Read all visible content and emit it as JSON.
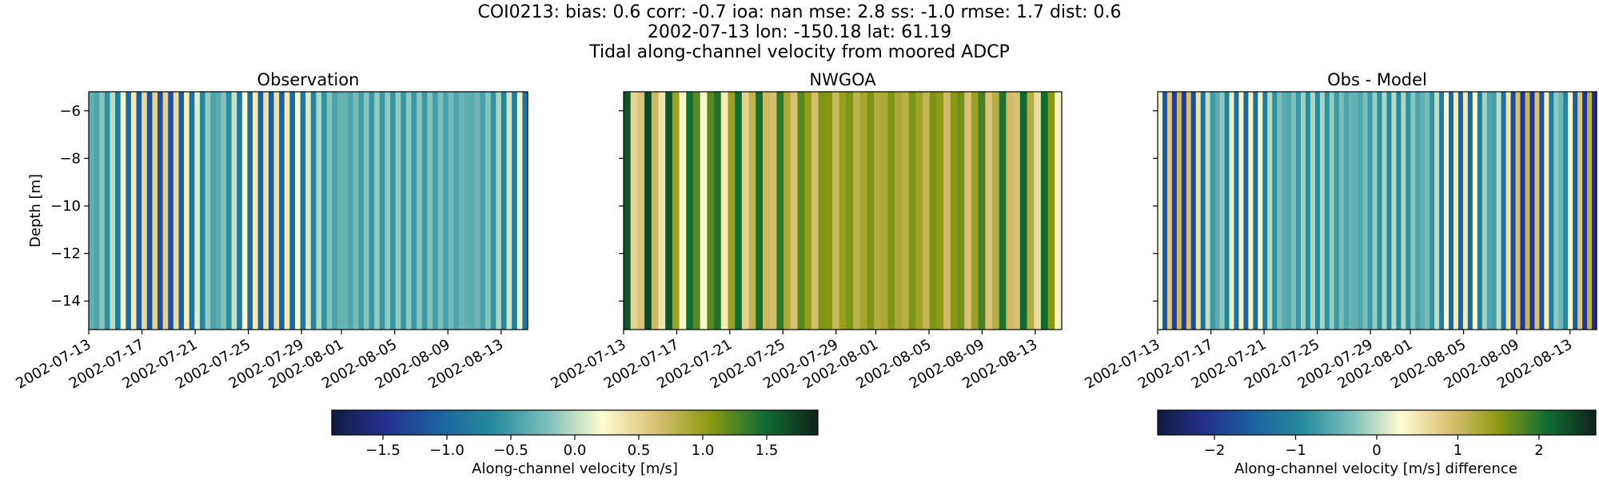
{
  "figure": {
    "title_line1": "COI0213: bias: 0.6  corr: -0.7  ioa: nan  mse: 2.8  ss: -1.0  rmse: 1.7  dist: 0.6",
    "title_line2": "2002-07-13 lon: -150.18 lat: 61.19",
    "title_line3": "Tidal along-channel velocity from moored ADCP"
  },
  "colors": {
    "cmap_delta": [
      "#111b40",
      "#24318f",
      "#1c63a0",
      "#268c9d",
      "#7cc0bb",
      "#fefcd0",
      "#d9c174",
      "#8c9a11",
      "#0f6e33",
      "#10231c"
    ]
  },
  "chart_data": [
    {
      "type": "heatmap",
      "title": "Observation",
      "xlabel": "",
      "ylabel": "Depth [m]",
      "x_tick_labels": [
        "2002-07-13",
        "2002-07-17",
        "2002-07-21",
        "2002-07-25",
        "2002-07-29",
        "2002-08-01",
        "2002-08-05",
        "2002-08-09",
        "2002-08-13"
      ],
      "y_ticks": [
        -6,
        -8,
        -10,
        -12,
        -14
      ],
      "y_tick_labels": [
        "−6",
        "−8",
        "−10",
        "−12",
        "−14"
      ],
      "ylim": [
        -15.2,
        -5.2
      ],
      "days": 33,
      "stripes_per_day": 2.5,
      "amp": 0.95,
      "offset": -0.35,
      "vmin": -1.9,
      "vmax": 1.9
    },
    {
      "type": "heatmap",
      "title": "NWGOA",
      "xlabel": "",
      "ylabel": "",
      "x_tick_labels": [
        "2002-07-13",
        "2002-07-17",
        "2002-07-21",
        "2002-07-25",
        "2002-07-29",
        "2002-08-01",
        "2002-08-05",
        "2002-08-09",
        "2002-08-13"
      ],
      "y_ticks": [
        -6,
        -8,
        -10,
        -12,
        -14
      ],
      "ylim": [
        -15.2,
        -5.2
      ],
      "days": 33,
      "stripes_per_day": 1.9,
      "amp": 0.75,
      "offset": 0.95,
      "vmin": -1.9,
      "vmax": 1.9
    },
    {
      "type": "heatmap",
      "title": "Obs - Model",
      "xlabel": "",
      "ylabel": "",
      "x_tick_labels": [
        "2002-07-13",
        "2002-07-17",
        "2002-07-21",
        "2002-07-25",
        "2002-07-29",
        "2002-08-01",
        "2002-08-05",
        "2002-08-09",
        "2002-08-13"
      ],
      "y_ticks": [
        -6,
        -8,
        -10,
        -12,
        -14
      ],
      "ylim": [
        -15.2,
        -5.2
      ],
      "days": 33,
      "stripes_per_day": 2.8,
      "amp": 1.7,
      "offset": -0.5,
      "vmin": -2.7,
      "vmax": 2.7
    }
  ],
  "colorbars": [
    {
      "label": "Along-channel velocity [m/s]",
      "vmin": -1.9,
      "vmax": 1.9,
      "ticks": [
        -1.5,
        -1.0,
        -0.5,
        0.0,
        0.5,
        1.0,
        1.5
      ],
      "tick_labels": [
        "−1.5",
        "−1.0",
        "−0.5",
        "0.0",
        "0.5",
        "1.0",
        "1.5"
      ]
    },
    {
      "label": "Along-channel velocity [m/s] difference",
      "vmin": -2.7,
      "vmax": 2.7,
      "ticks": [
        -2,
        -1,
        0,
        1,
        2
      ],
      "tick_labels": [
        "−2",
        "−1",
        "0",
        "1",
        "2"
      ]
    }
  ]
}
